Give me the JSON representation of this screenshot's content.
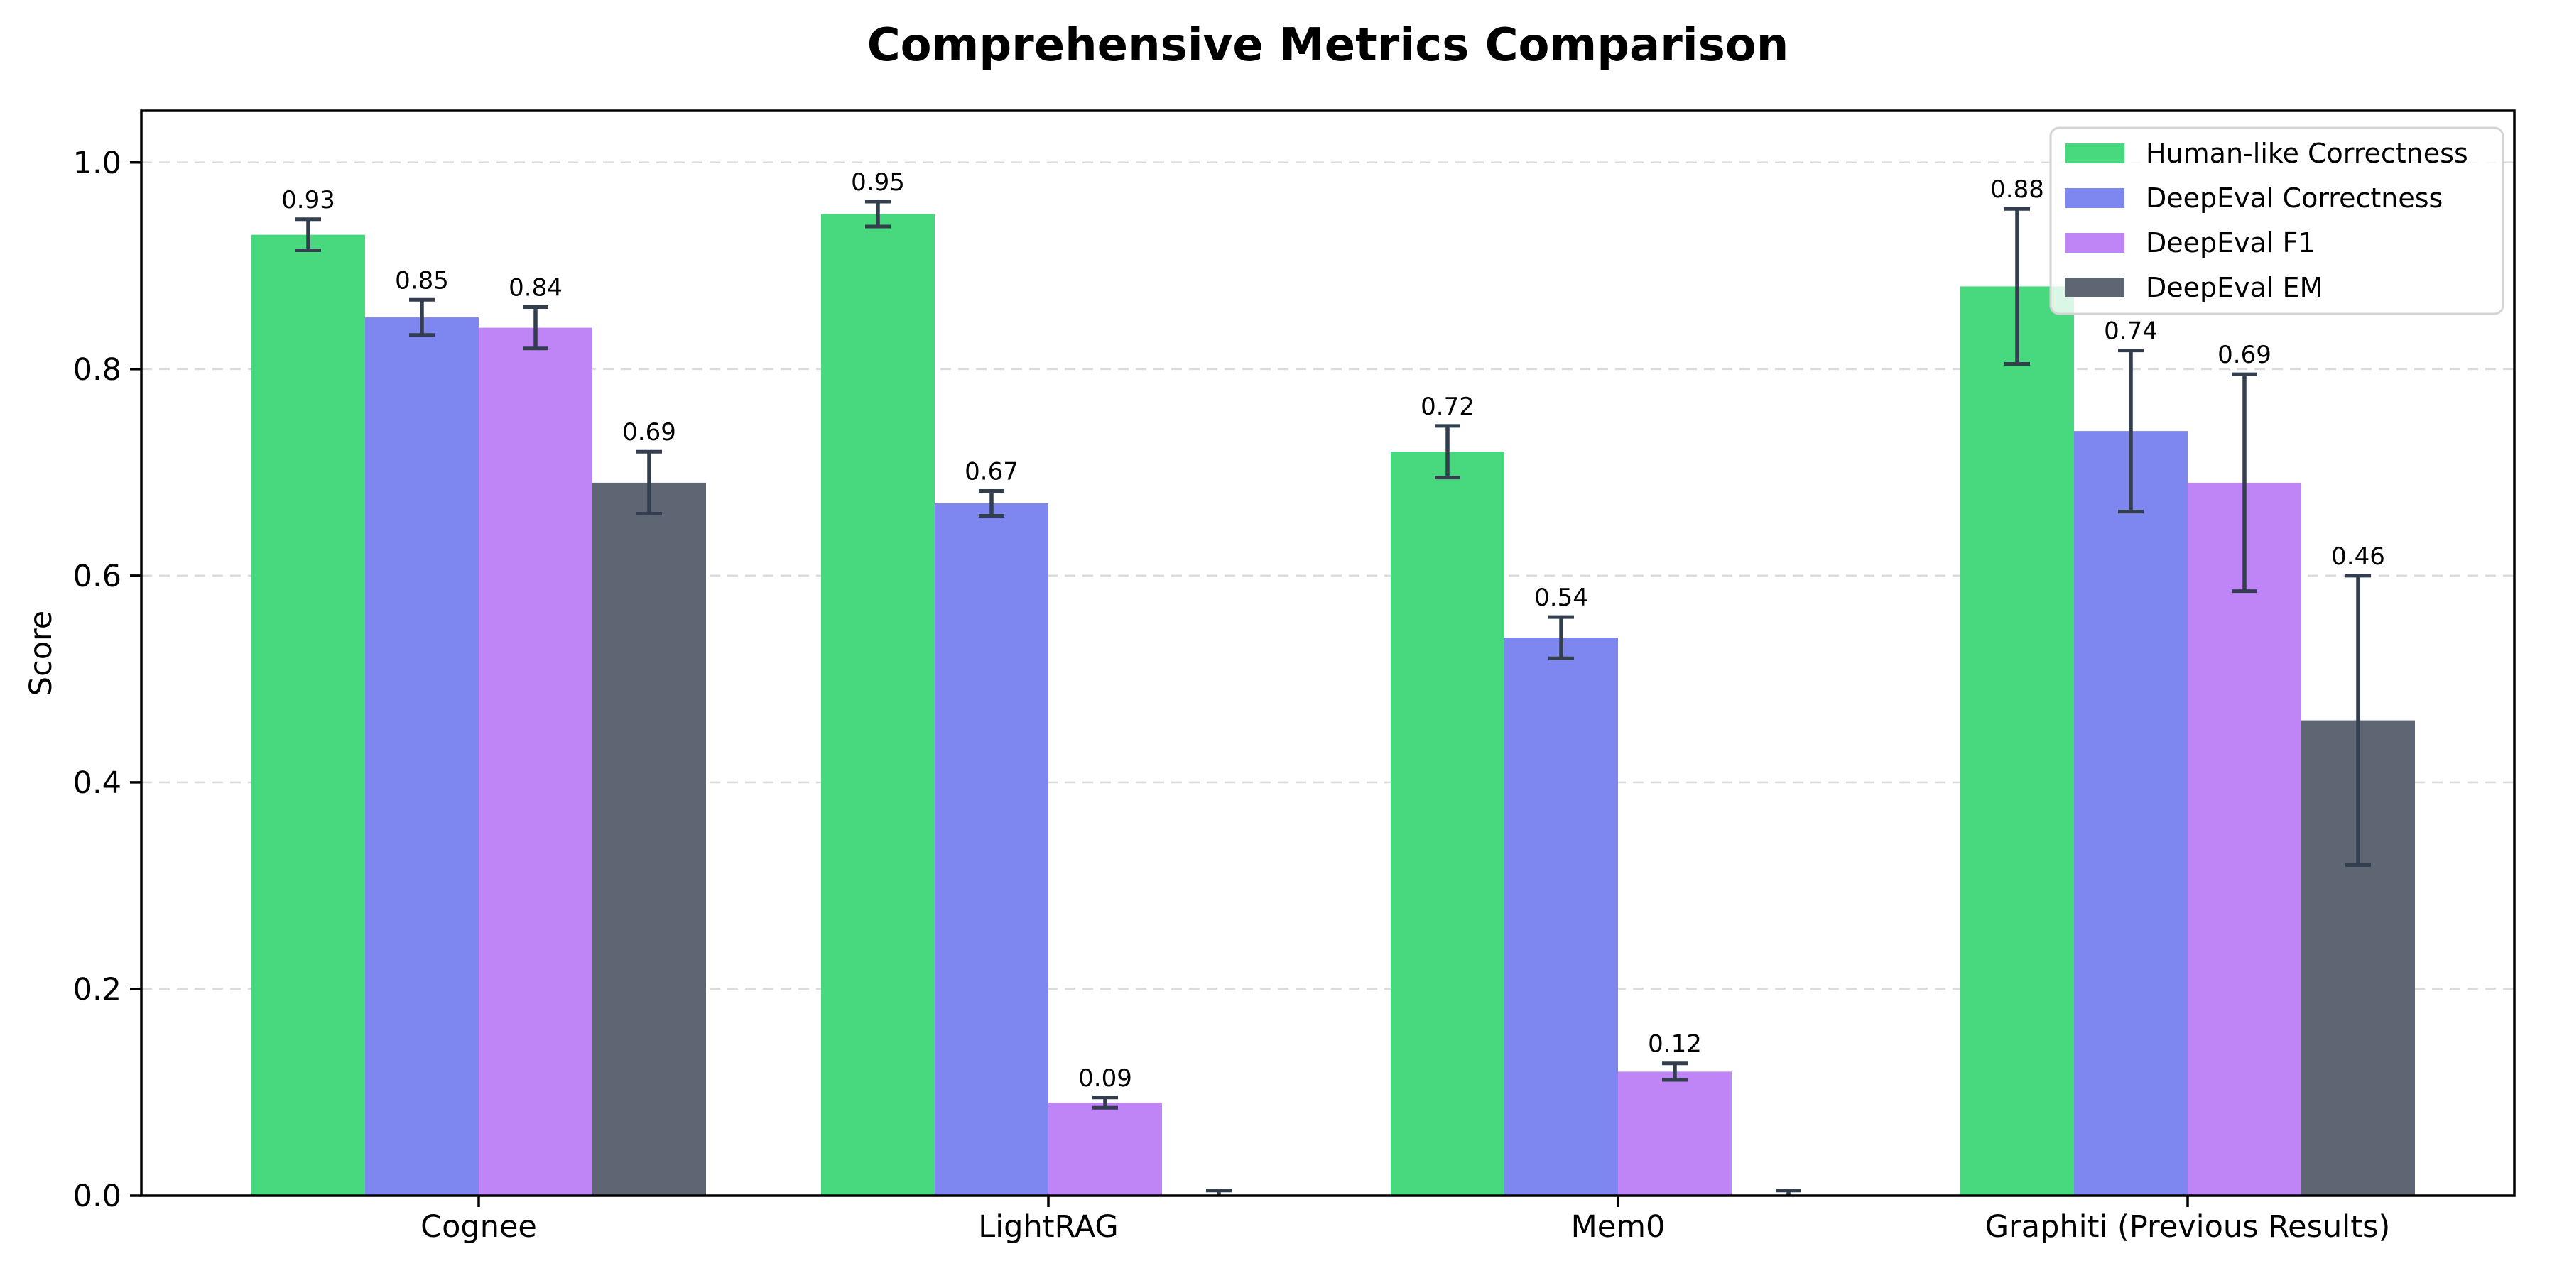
{
  "chart_data": {
    "type": "bar",
    "title": "Comprehensive Metrics Comparison",
    "xlabel": "",
    "ylabel": "Score",
    "categories": [
      "Cognee",
      "LightRAG",
      "Mem0",
      "Graphiti (Previous Results)"
    ],
    "series": [
      {
        "name": "Human-like Correctness",
        "color": "#48d87e",
        "values": [
          0.93,
          0.95,
          0.72,
          0.88
        ],
        "errors": [
          0.015,
          0.012,
          0.025,
          0.075
        ],
        "labels": [
          "0.93",
          "0.95",
          "0.72",
          "0.88"
        ]
      },
      {
        "name": "DeepEval Correctness",
        "color": "#7e87ef",
        "values": [
          0.85,
          0.67,
          0.54,
          0.74
        ],
        "errors": [
          0.017,
          0.012,
          0.02,
          0.078
        ],
        "labels": [
          "0.85",
          "0.67",
          "0.54",
          "0.74"
        ]
      },
      {
        "name": "DeepEval F1",
        "color": "#bf84f5",
        "values": [
          0.84,
          0.09,
          0.12,
          0.69
        ],
        "errors": [
          0.02,
          0.005,
          0.008,
          0.105
        ],
        "labels": [
          "0.84",
          "0.09",
          "0.12",
          "0.69"
        ]
      },
      {
        "name": "DeepEval EM",
        "color": "#5f6673",
        "values": [
          0.69,
          0.0,
          0.0,
          0.46
        ],
        "errors": [
          0.03,
          0.005,
          0.005,
          0.14
        ],
        "labels": [
          "0.69",
          "",
          "",
          "0.46"
        ]
      }
    ],
    "yticks": [
      {
        "value": 0.0,
        "label": "0.0"
      },
      {
        "value": 0.2,
        "label": "0.2"
      },
      {
        "value": 0.4,
        "label": "0.4"
      },
      {
        "value": 0.6,
        "label": "0.6"
      },
      {
        "value": 0.8,
        "label": "0.8"
      },
      {
        "value": 1.0,
        "label": "1.0"
      }
    ],
    "ylim": [
      0,
      1.05
    ],
    "bar_width": 0.2,
    "grid": {
      "axis": "y",
      "style": "dashed",
      "on": true
    },
    "legend": {
      "position": "upper right",
      "entries": [
        "Human-like Correctness",
        "DeepEval Correctness",
        "DeepEval F1",
        "DeepEval EM"
      ]
    },
    "styles": {
      "grid_color": "#dbdbdb",
      "errorbar_color": "#333e4e",
      "spine_color": "#000000",
      "text_color": "#000000",
      "background": "#ffffff",
      "legend_border": "#d4d4d4",
      "legend_background": "rgba(255,255,255,0.8)"
    }
  }
}
